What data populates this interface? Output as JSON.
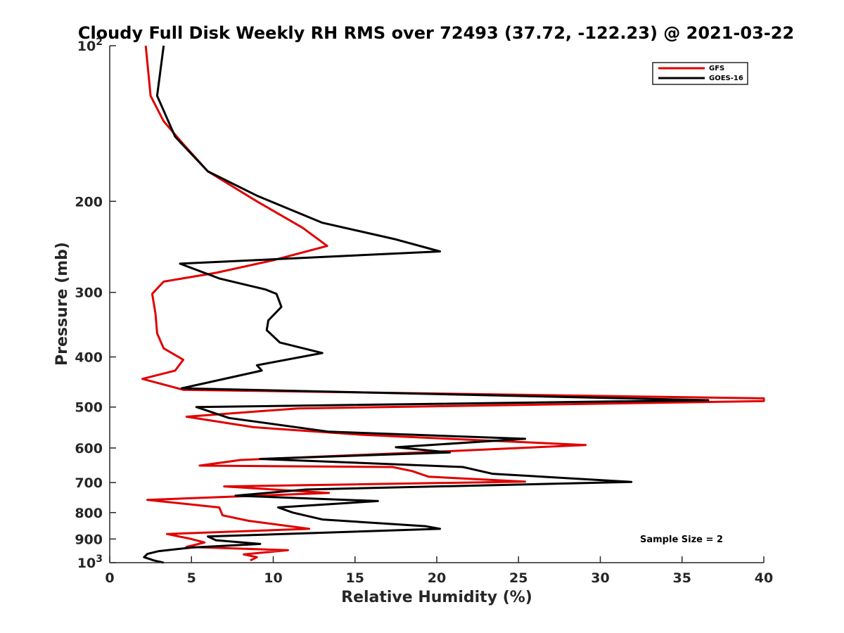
{
  "chart_data": {
    "type": "line",
    "title": "Cloudy Full Disk Weekly RH RMS over 72493 (37.72, -122.23) @ 2021-03-22",
    "xlabel": "Relative Humidity (%)",
    "ylabel": "Pressure (mb)",
    "xlim": [
      0,
      40
    ],
    "ylim": [
      100,
      1000
    ],
    "y_scale": "log",
    "y_reversed": true,
    "xticks": [
      0,
      5,
      10,
      15,
      20,
      25,
      30,
      35,
      40
    ],
    "xtick_labels": [
      "0",
      "5",
      "10",
      "15",
      "20",
      "25",
      "30",
      "35",
      "40"
    ],
    "yticks": [
      {
        "value": 100,
        "base": "10",
        "exp": "2"
      },
      {
        "value": 200,
        "label": "200"
      },
      {
        "value": 300,
        "label": "300"
      },
      {
        "value": 400,
        "label": "400"
      },
      {
        "value": 500,
        "label": "500"
      },
      {
        "value": 600,
        "label": "600"
      },
      {
        "value": 700,
        "label": "700"
      },
      {
        "value": 800,
        "label": "800"
      },
      {
        "value": 900,
        "label": "900"
      },
      {
        "value": 1000,
        "base": "10",
        "exp": "3"
      }
    ],
    "grid": false,
    "legend_position": "top-right",
    "annotation": "Sample Size = 2",
    "series": [
      {
        "name": "GFS",
        "color": "#e00000",
        "points": [
          [
            2.2,
            100
          ],
          [
            2.5,
            125
          ],
          [
            3.3,
            140
          ],
          [
            4.5,
            155
          ],
          [
            6.0,
            175
          ],
          [
            9.0,
            200
          ],
          [
            11.8,
            225
          ],
          [
            13.3,
            244
          ],
          [
            10.0,
            260
          ],
          [
            6.5,
            275
          ],
          [
            3.3,
            286
          ],
          [
            2.6,
            302
          ],
          [
            2.8,
            330
          ],
          [
            2.9,
            360
          ],
          [
            3.3,
            385
          ],
          [
            4.5,
            405
          ],
          [
            4.0,
            425
          ],
          [
            2.0,
            441
          ],
          [
            4.5,
            463
          ],
          [
            40.0,
            481
          ],
          [
            40.0,
            487
          ],
          [
            11.5,
            503
          ],
          [
            4.7,
            522
          ],
          [
            8.8,
            547
          ],
          [
            15.5,
            566
          ],
          [
            29.1,
            592
          ],
          [
            20.0,
            610
          ],
          [
            8.0,
            633
          ],
          [
            5.5,
            649
          ],
          [
            17.3,
            653
          ],
          [
            18.5,
            665
          ],
          [
            19.5,
            682
          ],
          [
            25.4,
            697
          ],
          [
            7.0,
            712
          ],
          [
            13.4,
            733
          ],
          [
            2.3,
            756
          ],
          [
            6.7,
            782
          ],
          [
            6.9,
            810
          ],
          [
            8.5,
            830
          ],
          [
            12.2,
            860
          ],
          [
            3.5,
            880
          ],
          [
            5.0,
            900
          ],
          [
            5.8,
            914
          ],
          [
            4.7,
            932
          ],
          [
            10.9,
            946
          ],
          [
            8.2,
            964
          ],
          [
            9.0,
            976
          ],
          [
            8.6,
            990
          ]
        ]
      },
      {
        "name": "GOES-16",
        "color": "#000000",
        "points": [
          [
            3.3,
            100
          ],
          [
            2.9,
            125
          ],
          [
            4.0,
            150
          ],
          [
            6.0,
            175
          ],
          [
            9.0,
            195
          ],
          [
            13.0,
            220
          ],
          [
            17.5,
            237
          ],
          [
            20.2,
            250
          ],
          [
            4.3,
            264
          ],
          [
            6.7,
            282
          ],
          [
            9.5,
            296
          ],
          [
            10.2,
            302
          ],
          [
            10.5,
            320
          ],
          [
            9.7,
            340
          ],
          [
            9.6,
            355
          ],
          [
            10.4,
            375
          ],
          [
            13.0,
            393
          ],
          [
            9.0,
            415
          ],
          [
            9.3,
            425
          ],
          [
            4.4,
            460
          ],
          [
            36.6,
            485
          ],
          [
            5.3,
            500
          ],
          [
            7.3,
            525
          ],
          [
            13.4,
            558
          ],
          [
            25.4,
            576
          ],
          [
            17.5,
            598
          ],
          [
            20.8,
            612
          ],
          [
            9.2,
            630
          ],
          [
            21.6,
            653
          ],
          [
            23.4,
            673
          ],
          [
            31.9,
            698
          ],
          [
            12.0,
            722
          ],
          [
            7.7,
            742
          ],
          [
            16.4,
            760
          ],
          [
            10.3,
            782
          ],
          [
            11.2,
            800
          ],
          [
            13.0,
            825
          ],
          [
            19.3,
            850
          ],
          [
            20.2,
            860
          ],
          [
            6.0,
            890
          ],
          [
            6.5,
            905
          ],
          [
            9.2,
            920
          ],
          [
            5.0,
            935
          ],
          [
            3.0,
            950
          ],
          [
            2.3,
            962
          ],
          [
            2.1,
            976
          ],
          [
            2.7,
            990
          ],
          [
            3.3,
            1000
          ]
        ]
      }
    ]
  }
}
